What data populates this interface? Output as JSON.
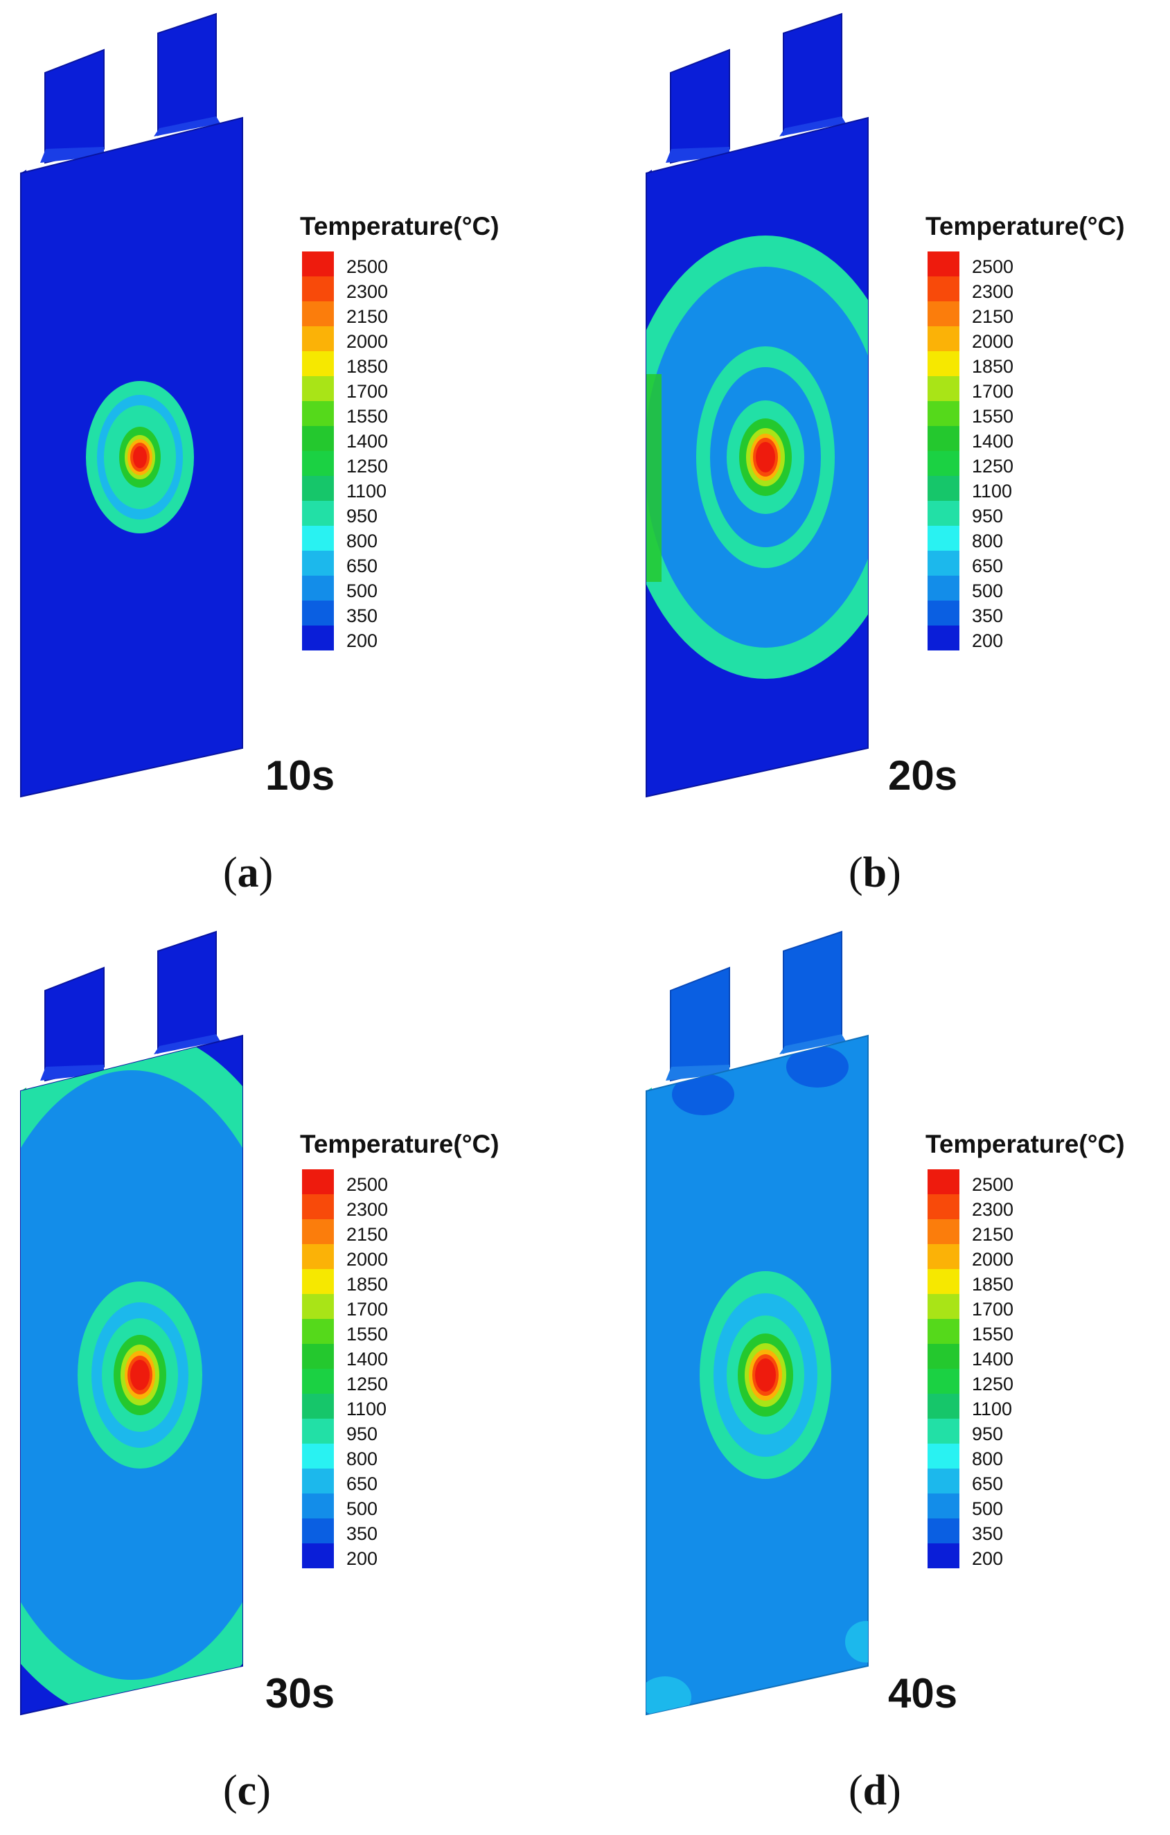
{
  "legend": {
    "title": "Temperature(°C)",
    "levels": [
      "2500",
      "2300",
      "2150",
      "2000",
      "1850",
      "1700",
      "1550",
      "1400",
      "1250",
      "1100",
      "950",
      "800",
      "650",
      "500",
      "350",
      "200"
    ],
    "colors": [
      "#ee1b0d",
      "#f84a0a",
      "#fb7d0c",
      "#fbb207",
      "#f6e800",
      "#a9e417",
      "#55d91b",
      "#24c82e",
      "#1bd143",
      "#16c66a",
      "#22e0a6",
      "#29f2f2",
      "#1cb8ec",
      "#138de9",
      "#0a5fe2",
      "#0a1ed8"
    ]
  },
  "panels": [
    {
      "id": "a",
      "time": "10s",
      "caption_letter": "a",
      "caption_open": "(",
      "caption_close": ")"
    },
    {
      "id": "b",
      "time": "20s",
      "caption_letter": "b",
      "caption_open": "(",
      "caption_close": ")"
    },
    {
      "id": "c",
      "time": "30s",
      "caption_letter": "c",
      "caption_open": "(",
      "caption_close": ")"
    },
    {
      "id": "d",
      "time": "40s",
      "caption_letter": "d",
      "caption_open": "(",
      "caption_close": ")"
    }
  ]
}
